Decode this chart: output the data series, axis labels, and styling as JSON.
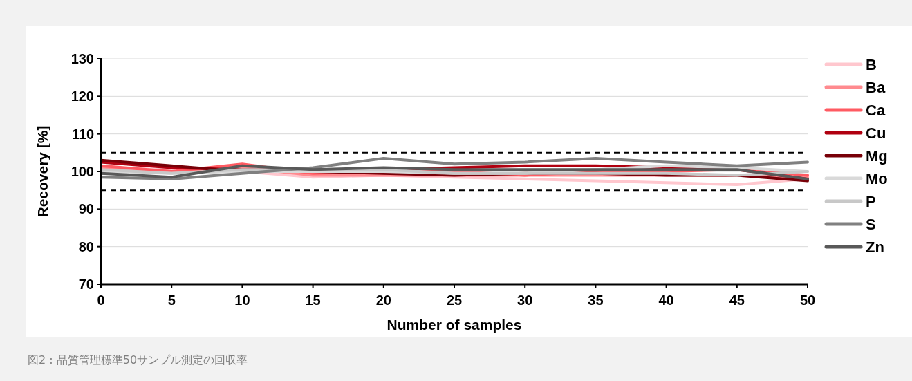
{
  "chart_data": {
    "type": "line",
    "xlabel": "Number of samples",
    "ylabel": "Recovery [%]",
    "x": [
      0,
      5,
      10,
      15,
      20,
      25,
      30,
      35,
      40,
      45,
      50
    ],
    "xlim": [
      0,
      50
    ],
    "xticks": [
      0,
      5,
      10,
      15,
      20,
      25,
      30,
      35,
      40,
      45,
      50
    ],
    "ylim": [
      70,
      130
    ],
    "yticks": [
      70,
      80,
      90,
      100,
      110,
      120,
      130
    ],
    "grid": "y",
    "legend": "right",
    "ref_lines": [
      {
        "axis": "y",
        "value": 105,
        "color": "#000000",
        "line_style": "dashed"
      },
      {
        "axis": "y",
        "value": 95,
        "color": "#000000",
        "line_style": "dashed"
      }
    ],
    "series": [
      {
        "name": "B",
        "color": "#ffc7ce",
        "values": [
          101,
          100.5,
          100,
          98.5,
          99,
          98.5,
          98,
          97.5,
          97,
          96.5,
          98
        ]
      },
      {
        "name": "Ba",
        "color": "#ff8a8f",
        "values": [
          101,
          100,
          101,
          99,
          99,
          99,
          99,
          99,
          99,
          99,
          98.5
        ]
      },
      {
        "name": "Ca",
        "color": "#ff5a62",
        "values": [
          101.5,
          100,
          102,
          99.5,
          100,
          100,
          99,
          100,
          100,
          100.5,
          99
        ]
      },
      {
        "name": "Cu",
        "color": "#b00010",
        "values": [
          102.5,
          101,
          100.5,
          100.5,
          100.5,
          101,
          101.5,
          101.5,
          101,
          100.5,
          98
        ]
      },
      {
        "name": "Mg",
        "color": "#780008",
        "values": [
          103,
          101.5,
          100,
          100,
          99.5,
          99,
          99.5,
          99.5,
          99,
          99,
          97.5
        ]
      },
      {
        "name": "Mo",
        "color": "#d9d9d9",
        "values": [
          100,
          99.5,
          100,
          100,
          100,
          99.5,
          99.5,
          100.5,
          101.5,
          101,
          100
        ]
      },
      {
        "name": "P",
        "color": "#c8c8c8",
        "values": [
          100.5,
          99.5,
          100.5,
          100.5,
          100.5,
          99.5,
          99.5,
          99.5,
          99.5,
          99,
          100
        ]
      },
      {
        "name": "S",
        "color": "#808080",
        "values": [
          98.5,
          98,
          99.5,
          101,
          103.5,
          102,
          102.5,
          103.5,
          102.5,
          101.5,
          102.5
        ]
      },
      {
        "name": "Zn",
        "color": "#595959",
        "values": [
          99.5,
          98.5,
          101.5,
          100.5,
          101,
          100.5,
          100.5,
          100.5,
          100.5,
          100.5,
          98
        ]
      }
    ],
    "annotations": [
      "図2 : 品質管理標準50サンプル測定の回収率"
    ]
  }
}
